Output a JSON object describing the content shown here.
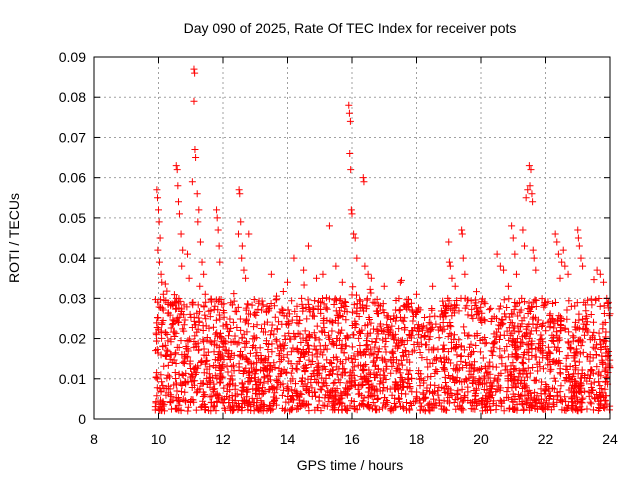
{
  "chart_data": {
    "type": "scatter",
    "title": "Day 090 of 2025, Rate Of TEC Index for receiver pots",
    "xlabel": "GPS time / hours",
    "ylabel": "ROTI / TECUs",
    "xlim": [
      8,
      24
    ],
    "ylim": [
      0,
      0.09
    ],
    "xticks": [
      8,
      10,
      12,
      14,
      16,
      18,
      20,
      22,
      24
    ],
    "yticks": [
      0,
      0.01,
      0.02,
      0.03,
      0.04,
      0.05,
      0.06,
      0.07,
      0.08,
      0.09
    ],
    "xtick_labels": [
      "8",
      "10",
      "12",
      "14",
      "16",
      "18",
      "20",
      "22",
      "24"
    ],
    "ytick_labels": [
      "0",
      "0.01",
      "0.02",
      "0.03",
      "0.04",
      "0.05",
      "0.06",
      "0.07",
      "0.08",
      "0.09"
    ],
    "grid": true,
    "marker": "+",
    "color": "#ff0000",
    "series": [
      {
        "name": "ROTI",
        "dense_band": {
          "x_range": [
            9.9,
            24.0
          ],
          "y_range": [
            0.002,
            0.03
          ],
          "count": 2600
        },
        "points": [
          [
            9.95,
            0.057
          ],
          [
            9.97,
            0.055
          ],
          [
            10.0,
            0.052
          ],
          [
            10.02,
            0.049
          ],
          [
            10.05,
            0.045
          ],
          [
            9.98,
            0.042
          ],
          [
            10.03,
            0.039
          ],
          [
            10.08,
            0.036
          ],
          [
            10.1,
            0.034
          ],
          [
            10.15,
            0.031
          ],
          [
            10.55,
            0.063
          ],
          [
            10.58,
            0.062
          ],
          [
            10.6,
            0.058
          ],
          [
            10.62,
            0.054
          ],
          [
            10.65,
            0.051
          ],
          [
            10.7,
            0.046
          ],
          [
            10.75,
            0.042
          ],
          [
            10.72,
            0.038
          ],
          [
            10.9,
            0.041
          ],
          [
            10.95,
            0.035
          ],
          [
            11.05,
            0.059
          ],
          [
            11.1,
            0.087
          ],
          [
            11.12,
            0.086
          ],
          [
            11.1,
            0.079
          ],
          [
            11.13,
            0.067
          ],
          [
            11.15,
            0.065
          ],
          [
            11.2,
            0.056
          ],
          [
            11.25,
            0.052
          ],
          [
            11.22,
            0.049
          ],
          [
            11.3,
            0.044
          ],
          [
            11.35,
            0.039
          ],
          [
            11.4,
            0.036
          ],
          [
            11.28,
            0.033
          ],
          [
            11.45,
            0.031
          ],
          [
            11.8,
            0.052
          ],
          [
            11.82,
            0.05
          ],
          [
            11.85,
            0.047
          ],
          [
            11.88,
            0.043
          ],
          [
            11.9,
            0.039
          ],
          [
            12.5,
            0.057
          ],
          [
            12.52,
            0.056
          ],
          [
            12.55,
            0.049
          ],
          [
            12.48,
            0.046
          ],
          [
            12.6,
            0.043
          ],
          [
            12.58,
            0.04
          ],
          [
            12.65,
            0.037
          ],
          [
            12.8,
            0.046
          ],
          [
            12.7,
            0.035
          ],
          [
            13.5,
            0.036
          ],
          [
            14.0,
            0.034
          ],
          [
            14.2,
            0.04
          ],
          [
            14.5,
            0.037
          ],
          [
            14.65,
            0.043
          ],
          [
            14.9,
            0.035
          ],
          [
            15.1,
            0.036
          ],
          [
            15.3,
            0.048
          ],
          [
            15.5,
            0.038
          ],
          [
            15.7,
            0.034
          ],
          [
            15.9,
            0.078
          ],
          [
            15.92,
            0.076
          ],
          [
            15.95,
            0.074
          ],
          [
            15.93,
            0.066
          ],
          [
            15.96,
            0.062
          ],
          [
            15.98,
            0.052
          ],
          [
            16.0,
            0.051
          ],
          [
            16.05,
            0.046
          ],
          [
            16.1,
            0.045
          ],
          [
            16.15,
            0.04
          ],
          [
            16.35,
            0.06
          ],
          [
            16.37,
            0.059
          ],
          [
            16.4,
            0.038
          ],
          [
            16.5,
            0.036
          ],
          [
            16.6,
            0.035
          ],
          [
            17.0,
            0.033
          ],
          [
            17.5,
            0.034
          ],
          [
            18.0,
            0.031
          ],
          [
            18.5,
            0.033
          ],
          [
            19.0,
            0.044
          ],
          [
            19.02,
            0.039
          ],
          [
            19.05,
            0.038
          ],
          [
            19.1,
            0.035
          ],
          [
            19.2,
            0.033
          ],
          [
            19.4,
            0.047
          ],
          [
            19.42,
            0.046
          ],
          [
            19.45,
            0.04
          ],
          [
            19.5,
            0.036
          ],
          [
            19.38,
            0.03
          ],
          [
            20.5,
            0.041
          ],
          [
            20.6,
            0.038
          ],
          [
            20.7,
            0.037
          ],
          [
            20.85,
            0.033
          ],
          [
            20.95,
            0.048
          ],
          [
            21.0,
            0.045
          ],
          [
            21.05,
            0.041
          ],
          [
            21.1,
            0.036
          ],
          [
            21.3,
            0.047
          ],
          [
            21.35,
            0.043
          ],
          [
            21.5,
            0.063
          ],
          [
            21.55,
            0.062
          ],
          [
            21.52,
            0.058
          ],
          [
            21.58,
            0.056
          ],
          [
            21.6,
            0.054
          ],
          [
            21.62,
            0.042
          ],
          [
            21.65,
            0.04
          ],
          [
            21.7,
            0.037
          ],
          [
            21.4,
            0.055
          ],
          [
            21.45,
            0.057
          ],
          [
            22.3,
            0.046
          ],
          [
            22.35,
            0.044
          ],
          [
            22.4,
            0.041
          ],
          [
            22.5,
            0.039
          ],
          [
            22.6,
            0.038
          ],
          [
            22.7,
            0.036
          ],
          [
            22.45,
            0.035
          ],
          [
            22.55,
            0.042
          ],
          [
            23.0,
            0.047
          ],
          [
            23.02,
            0.045
          ],
          [
            23.05,
            0.043
          ],
          [
            23.1,
            0.04
          ],
          [
            23.15,
            0.038
          ],
          [
            23.6,
            0.037
          ],
          [
            23.7,
            0.036
          ],
          [
            23.8,
            0.034
          ],
          [
            23.9,
            0.03
          ],
          [
            23.95,
            0.029
          ]
        ]
      }
    ]
  }
}
